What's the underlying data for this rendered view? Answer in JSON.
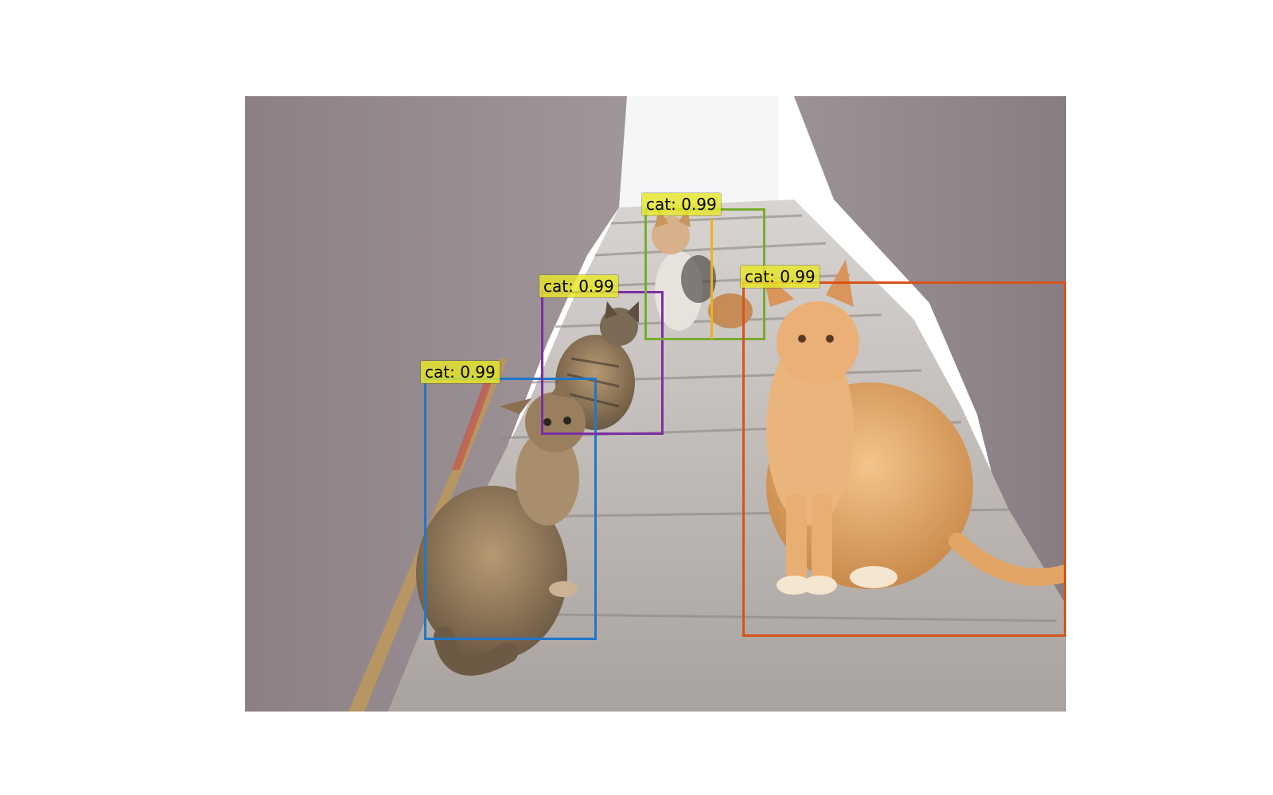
{
  "detections": [
    {
      "label": "cat: 0.99",
      "color": "#0072BD",
      "name": "cat-detection-left"
    },
    {
      "label": "cat: 0.99",
      "color": "#7E2F8E",
      "name": "cat-detection-middle"
    },
    {
      "label": "cat: 0.99",
      "color": "#77AC30",
      "name": "cat-detection-top"
    },
    {
      "label": "cat: 0.99",
      "color": "#D95319",
      "name": "cat-detection-right"
    }
  ],
  "photo": {
    "subject": "cats on outdoor concrete stairs"
  }
}
